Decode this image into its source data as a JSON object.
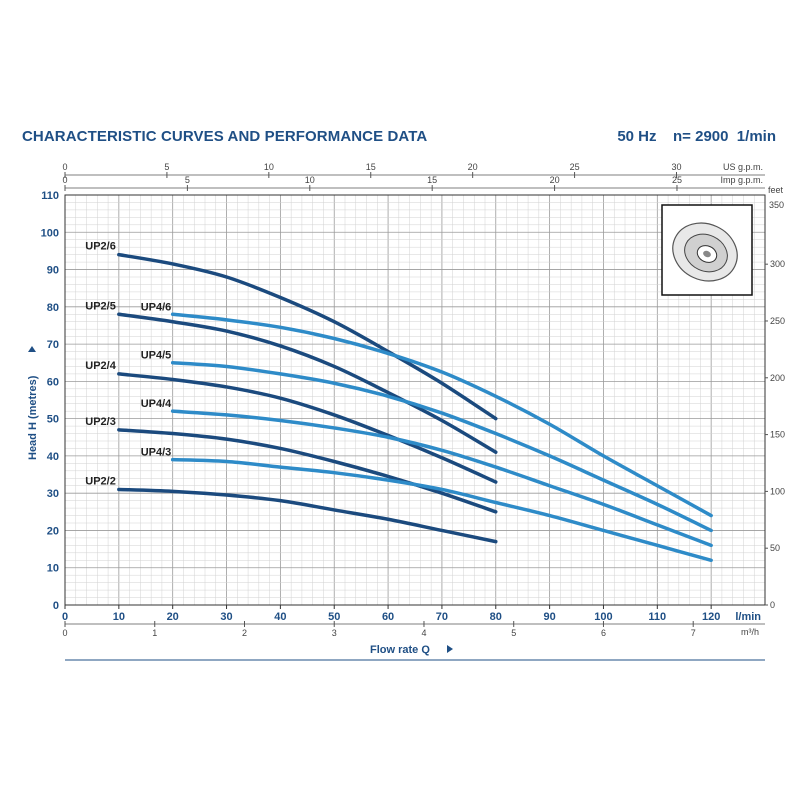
{
  "title": "CHARACTERISTIC CURVES AND PERFORMANCE DATA",
  "frequency": "50 Hz",
  "speed": "n= 2900  1/min",
  "chart_data": {
    "type": "line",
    "xlabel": "Flow rate Q",
    "ylabel": "Head H (metres)",
    "x_unit_main": "l/min",
    "x_ticks_lmin": [
      0,
      10,
      20,
      30,
      40,
      50,
      60,
      70,
      80,
      90,
      100,
      110,
      120
    ],
    "xlim": [
      0,
      130
    ],
    "ylim": [
      0,
      110
    ],
    "y_ticks": [
      0,
      10,
      20,
      30,
      40,
      50,
      60,
      70,
      80,
      90,
      100,
      110
    ],
    "grid": true,
    "secondary_axes": {
      "us_gpm": {
        "label": "US g.p.m.",
        "ticks": [
          0,
          5,
          10,
          15,
          20,
          25,
          30
        ]
      },
      "imp_gpm": {
        "label": "Imp g.p.m.",
        "ticks": [
          0,
          5,
          10,
          15,
          20,
          25
        ]
      },
      "m3h": {
        "label": "m³/h",
        "ticks": [
          0,
          1,
          2,
          3,
          4,
          5,
          6,
          7
        ]
      },
      "feet": {
        "label": "feet",
        "ticks": [
          0,
          50,
          100,
          150,
          200,
          250,
          300,
          350
        ]
      }
    },
    "series": [
      {
        "name": "UP2/6",
        "color": "#1b4a7e",
        "x": [
          10,
          20,
          30,
          40,
          50,
          60,
          70,
          80
        ],
        "y": [
          94,
          91.5,
          88,
          82.5,
          76,
          68,
          59.5,
          50
        ]
      },
      {
        "name": "UP2/5",
        "color": "#1b4a7e",
        "x": [
          10,
          20,
          30,
          40,
          50,
          60,
          70,
          80
        ],
        "y": [
          78,
          76,
          73.5,
          69.5,
          64,
          57,
          49.5,
          41
        ]
      },
      {
        "name": "UP2/4",
        "color": "#1b4a7e",
        "x": [
          10,
          20,
          30,
          40,
          50,
          60,
          70,
          80
        ],
        "y": [
          62,
          60.5,
          58.5,
          55.5,
          51,
          45.5,
          39.5,
          33
        ]
      },
      {
        "name": "UP2/3",
        "color": "#1b4a7e",
        "x": [
          10,
          20,
          30,
          40,
          50,
          60,
          70,
          80
        ],
        "y": [
          47,
          46,
          44.5,
          42,
          38.5,
          34.5,
          30,
          25
        ]
      },
      {
        "name": "UP2/2",
        "color": "#1b4a7e",
        "x": [
          10,
          20,
          30,
          40,
          50,
          60,
          70,
          80
        ],
        "y": [
          31,
          30.5,
          29.5,
          28,
          25.5,
          23,
          20,
          17
        ]
      },
      {
        "name": "UP4/6",
        "color": "#2e8bc8",
        "x": [
          20,
          30,
          40,
          50,
          60,
          70,
          80,
          90,
          100,
          110,
          120
        ],
        "y": [
          78,
          76.5,
          74.5,
          71.5,
          67.5,
          62.5,
          56,
          48.5,
          40,
          32,
          24
        ]
      },
      {
        "name": "UP4/5",
        "color": "#2e8bc8",
        "x": [
          20,
          30,
          40,
          50,
          60,
          70,
          80,
          90,
          100,
          110,
          120
        ],
        "y": [
          65,
          64,
          62,
          59.5,
          56,
          51.5,
          46,
          40,
          33.5,
          27,
          20
        ]
      },
      {
        "name": "UP4/4",
        "color": "#2e8bc8",
        "x": [
          20,
          30,
          40,
          50,
          60,
          70,
          80,
          90,
          100,
          110,
          120
        ],
        "y": [
          52,
          51,
          49.5,
          47.5,
          45,
          41.5,
          37,
          32,
          27,
          21.5,
          16
        ]
      },
      {
        "name": "UP4/3",
        "color": "#2e8bc8",
        "x": [
          20,
          30,
          40,
          50,
          60,
          70,
          80,
          90,
          100,
          110,
          120
        ],
        "y": [
          39,
          38.5,
          37,
          35.5,
          33.5,
          31,
          27.5,
          24,
          20,
          16,
          12
        ]
      }
    ]
  }
}
